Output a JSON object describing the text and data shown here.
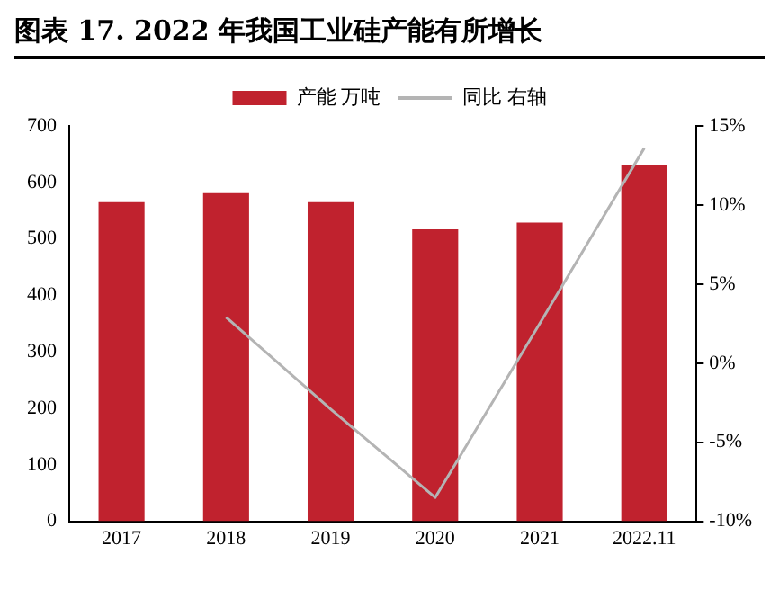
{
  "chart_data": {
    "type": "bar",
    "title": "图表 17. 2022 年我国工业硅产能有所增长",
    "categories": [
      "2017",
      "2018",
      "2019",
      "2020",
      "2021",
      "2022.11"
    ],
    "series": [
      {
        "name": "产能 万吨",
        "color": "#c0222e",
        "values": [
          565,
          581,
          565,
          517,
          529,
          631
        ]
      },
      {
        "name": "同比 右轴",
        "type": "line",
        "axis": "y2",
        "color": "#b4b4b4",
        "values": [
          null,
          2.9,
          -2.9,
          -8.5,
          2.5,
          13.6
        ]
      }
    ],
    "ylim": [
      0,
      700
    ],
    "yticks": [
      0,
      100,
      200,
      300,
      400,
      500,
      600,
      700
    ],
    "y2lim": [
      -10,
      15
    ],
    "y2ticks": [
      {
        "value": -10,
        "label": "-10%"
      },
      {
        "value": -5,
        "label": "-5%"
      },
      {
        "value": 0,
        "label": "0%"
      },
      {
        "value": 5,
        "label": "5%"
      },
      {
        "value": 10,
        "label": "10%"
      },
      {
        "value": 15,
        "label": "15%"
      }
    ],
    "grid": false,
    "legend": "top",
    "marker": "none"
  }
}
